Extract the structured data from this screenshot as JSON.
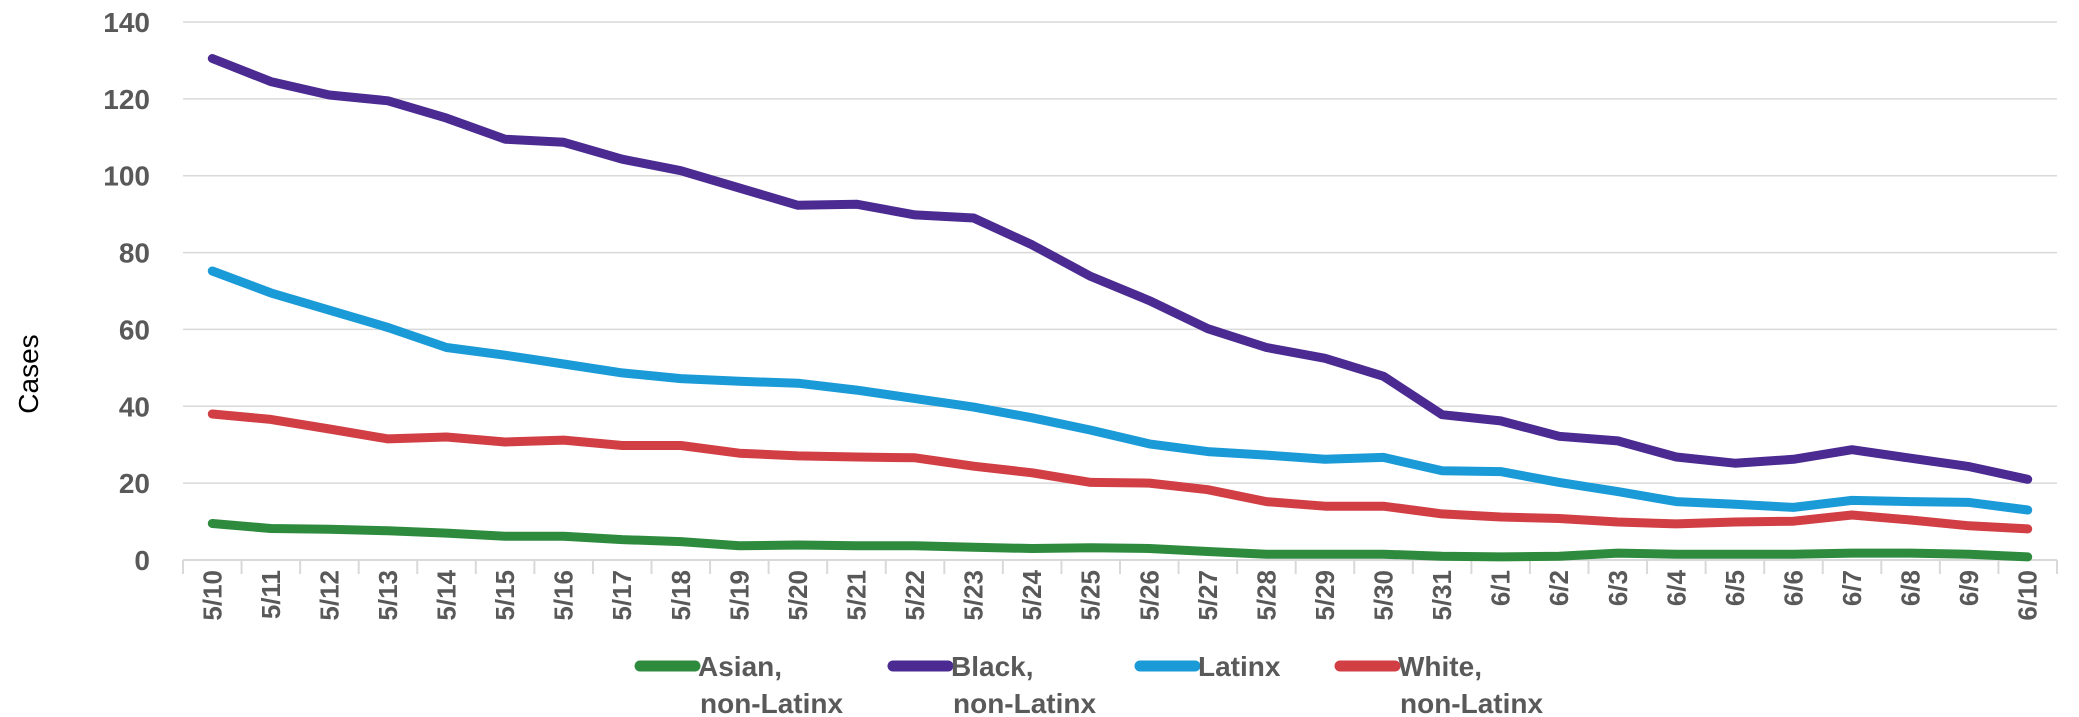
{
  "chart_data": {
    "type": "line",
    "title": "",
    "xlabel": "",
    "ylabel": "Cases",
    "ylim": [
      0,
      140
    ],
    "yticks": [
      0,
      20,
      40,
      60,
      80,
      100,
      120,
      140
    ],
    "grid": true,
    "legend_position": "bottom",
    "categories": [
      "5/10",
      "5/11",
      "5/12",
      "5/13",
      "5/14",
      "5/15",
      "5/16",
      "5/17",
      "5/18",
      "5/19",
      "5/20",
      "5/21",
      "5/22",
      "5/23",
      "5/24",
      "5/25",
      "5/26",
      "5/27",
      "5/28",
      "5/29",
      "5/30",
      "5/31",
      "6/1",
      "6/2",
      "6/3",
      "6/4",
      "6/5",
      "6/6",
      "6/7",
      "6/8",
      "6/9",
      "6/10"
    ],
    "series": [
      {
        "name": "Asian, non-Latinx",
        "legend_lines": [
          "Asian,",
          "non-Latinx"
        ],
        "color": "#2e8b3e",
        "values": [
          9.5,
          8.2,
          8,
          7.6,
          7,
          6.2,
          6.2,
          5.3,
          4.8,
          3.7,
          3.9,
          3.7,
          3.7,
          3.3,
          3,
          3.2,
          3,
          2.2,
          1.5,
          1.5,
          1.5,
          1,
          0.8,
          1,
          1.8,
          1.5,
          1.5,
          1.5,
          1.8,
          1.8,
          1.5,
          0.8
        ]
      },
      {
        "name": "Black, non-Latinx",
        "legend_lines": [
          "Black,",
          "non-Latinx"
        ],
        "color": "#4b2a91",
        "values": [
          130.5,
          124.5,
          121,
          119.5,
          115,
          109.5,
          108.7,
          104.3,
          101.3,
          96.8,
          92.3,
          92.6,
          89.8,
          89,
          82,
          73.8,
          67.5,
          60.2,
          55.3,
          52.5,
          47.8,
          37.8,
          36.2,
          32.2,
          31,
          26.8,
          25.2,
          26.2,
          28.7,
          26.5,
          24.3,
          21
        ]
      },
      {
        "name": "Latinx",
        "legend_lines": [
          "Latinx"
        ],
        "color": "#1a9ad6",
        "values": [
          75.2,
          69.5,
          65,
          60.5,
          55.3,
          53.3,
          51,
          48.7,
          47.2,
          46.5,
          46,
          44.2,
          42,
          39.8,
          37,
          33.8,
          30.2,
          28.2,
          27.3,
          26.2,
          26.7,
          23.2,
          23,
          20.2,
          17.8,
          15.2,
          14.5,
          13.7,
          15.5,
          15.2,
          15,
          13
        ]
      },
      {
        "name": "White, non-Latinx",
        "legend_lines": [
          "White,",
          "non-Latinx"
        ],
        "color": "#d13f45",
        "values": [
          38,
          36.6,
          34.1,
          31.5,
          32,
          30.7,
          31.2,
          29.8,
          29.8,
          27.8,
          27.1,
          26.8,
          26.6,
          24.4,
          22.7,
          20.2,
          20,
          18.3,
          15.2,
          14,
          14,
          12,
          11.2,
          10.8,
          9.9,
          9.4,
          9.9,
          10.1,
          11.7,
          10.4,
          8.9,
          8.1
        ]
      }
    ]
  }
}
